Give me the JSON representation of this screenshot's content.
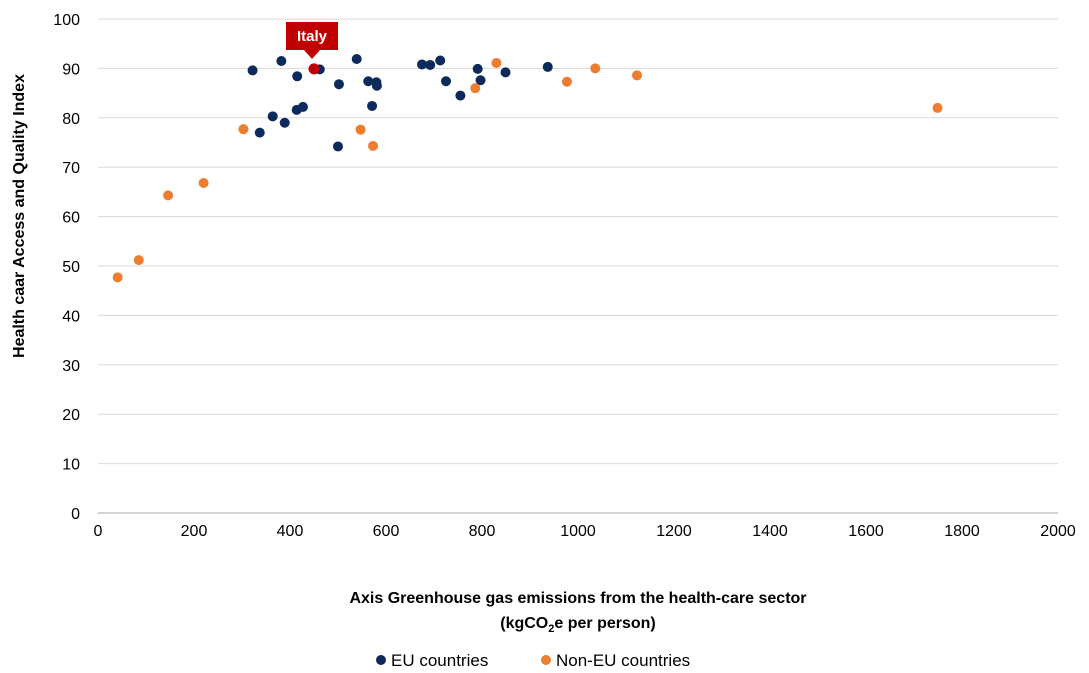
{
  "chart_data": {
    "type": "scatter",
    "xlabel": {
      "line1": "Axis Greenhouse gas emissions from the health-care sector",
      "line2_pre": "(kgCO",
      "line2_sub": "2",
      "line2_post": "e per person)"
    },
    "ylabel": "Health caar Access and Quality Index",
    "xlim": [
      0,
      2000
    ],
    "ylim": [
      0,
      100
    ],
    "xticks": [
      0,
      200,
      400,
      600,
      800,
      1000,
      1200,
      1400,
      1600,
      1800,
      2000
    ],
    "yticks": [
      0,
      10,
      20,
      30,
      40,
      50,
      60,
      70,
      80,
      90,
      100
    ],
    "grid": "horizontal",
    "legend_position": "bottom-center",
    "series": [
      {
        "name": "EU countries",
        "color": "#0d2a5c",
        "points": [
          {
            "x": 322,
            "y": 89.6
          },
          {
            "x": 337,
            "y": 77.0
          },
          {
            "x": 364,
            "y": 80.3
          },
          {
            "x": 382,
            "y": 91.5
          },
          {
            "x": 389,
            "y": 79.0
          },
          {
            "x": 414,
            "y": 81.6
          },
          {
            "x": 415,
            "y": 88.4
          },
          {
            "x": 427,
            "y": 82.2
          },
          {
            "x": 462,
            "y": 89.8
          },
          {
            "x": 500,
            "y": 74.2
          },
          {
            "x": 502,
            "y": 86.8
          },
          {
            "x": 539,
            "y": 91.9
          },
          {
            "x": 563,
            "y": 87.4
          },
          {
            "x": 571,
            "y": 82.4
          },
          {
            "x": 580,
            "y": 87.2
          },
          {
            "x": 581,
            "y": 86.5
          },
          {
            "x": 675,
            "y": 90.8
          },
          {
            "x": 692,
            "y": 90.7
          },
          {
            "x": 713,
            "y": 91.6
          },
          {
            "x": 725,
            "y": 87.4
          },
          {
            "x": 755,
            "y": 84.5
          },
          {
            "x": 791,
            "y": 89.9
          },
          {
            "x": 797,
            "y": 87.6
          },
          {
            "x": 849,
            "y": 89.2
          },
          {
            "x": 937,
            "y": 90.3
          }
        ]
      },
      {
        "name": "Non-EU countries",
        "color": "#ed7d31",
        "points": [
          {
            "x": 41,
            "y": 47.7
          },
          {
            "x": 85,
            "y": 51.2
          },
          {
            "x": 146,
            "y": 64.3
          },
          {
            "x": 220,
            "y": 66.8
          },
          {
            "x": 303,
            "y": 77.7
          },
          {
            "x": 547,
            "y": 77.6
          },
          {
            "x": 573,
            "y": 74.3
          },
          {
            "x": 786,
            "y": 86.0
          },
          {
            "x": 830,
            "y": 91.1
          },
          {
            "x": 977,
            "y": 87.3
          },
          {
            "x": 1036,
            "y": 90.0
          },
          {
            "x": 1123,
            "y": 88.6
          },
          {
            "x": 1749,
            "y": 82.0
          }
        ]
      }
    ],
    "highlight": {
      "label": "Italy",
      "x": 450,
      "y": 89.9,
      "color": "#c00000"
    }
  }
}
